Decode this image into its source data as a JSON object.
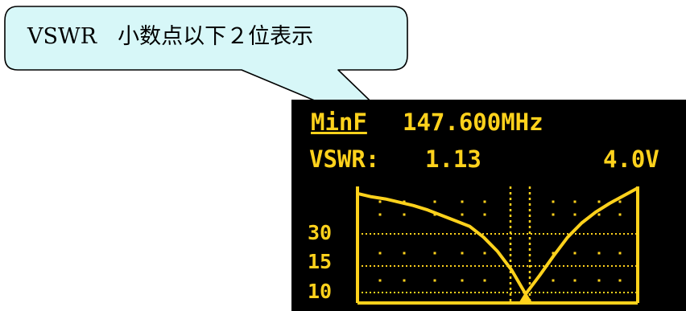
{
  "callout": {
    "title": "VSWR",
    "subtitle": "小数点以下２位表示"
  },
  "display": {
    "mode_label": "MinF",
    "frequency": "147.600MHz",
    "vswr_label": "VSWR:",
    "vswr_value": "1.13",
    "voltage": "4.0V",
    "y_ticks": [
      "30",
      "15",
      "10"
    ]
  },
  "colors": {
    "oled": "#ffd21c",
    "callout_fill": "#d7f7f8",
    "screen_bg": "#000000"
  },
  "chart_data": {
    "type": "line",
    "series": [
      {
        "x": [
          0,
          5,
          10,
          15,
          20,
          25,
          30,
          35,
          40,
          45,
          50,
          55,
          60,
          65,
          70,
          75,
          80,
          85,
          90,
          95,
          100
        ],
        "y": [
          0.95,
          0.92,
          0.9,
          0.87,
          0.84,
          0.8,
          0.75,
          0.7,
          0.65,
          0.55,
          0.42,
          0.25,
          0.03,
          0.2,
          0.38,
          0.55,
          0.68,
          0.78,
          0.86,
          0.93,
          1.0
        ]
      }
    ],
    "marker_x": 60,
    "y_ticks": [
      "30",
      "15",
      "10"
    ],
    "grid": true
  }
}
